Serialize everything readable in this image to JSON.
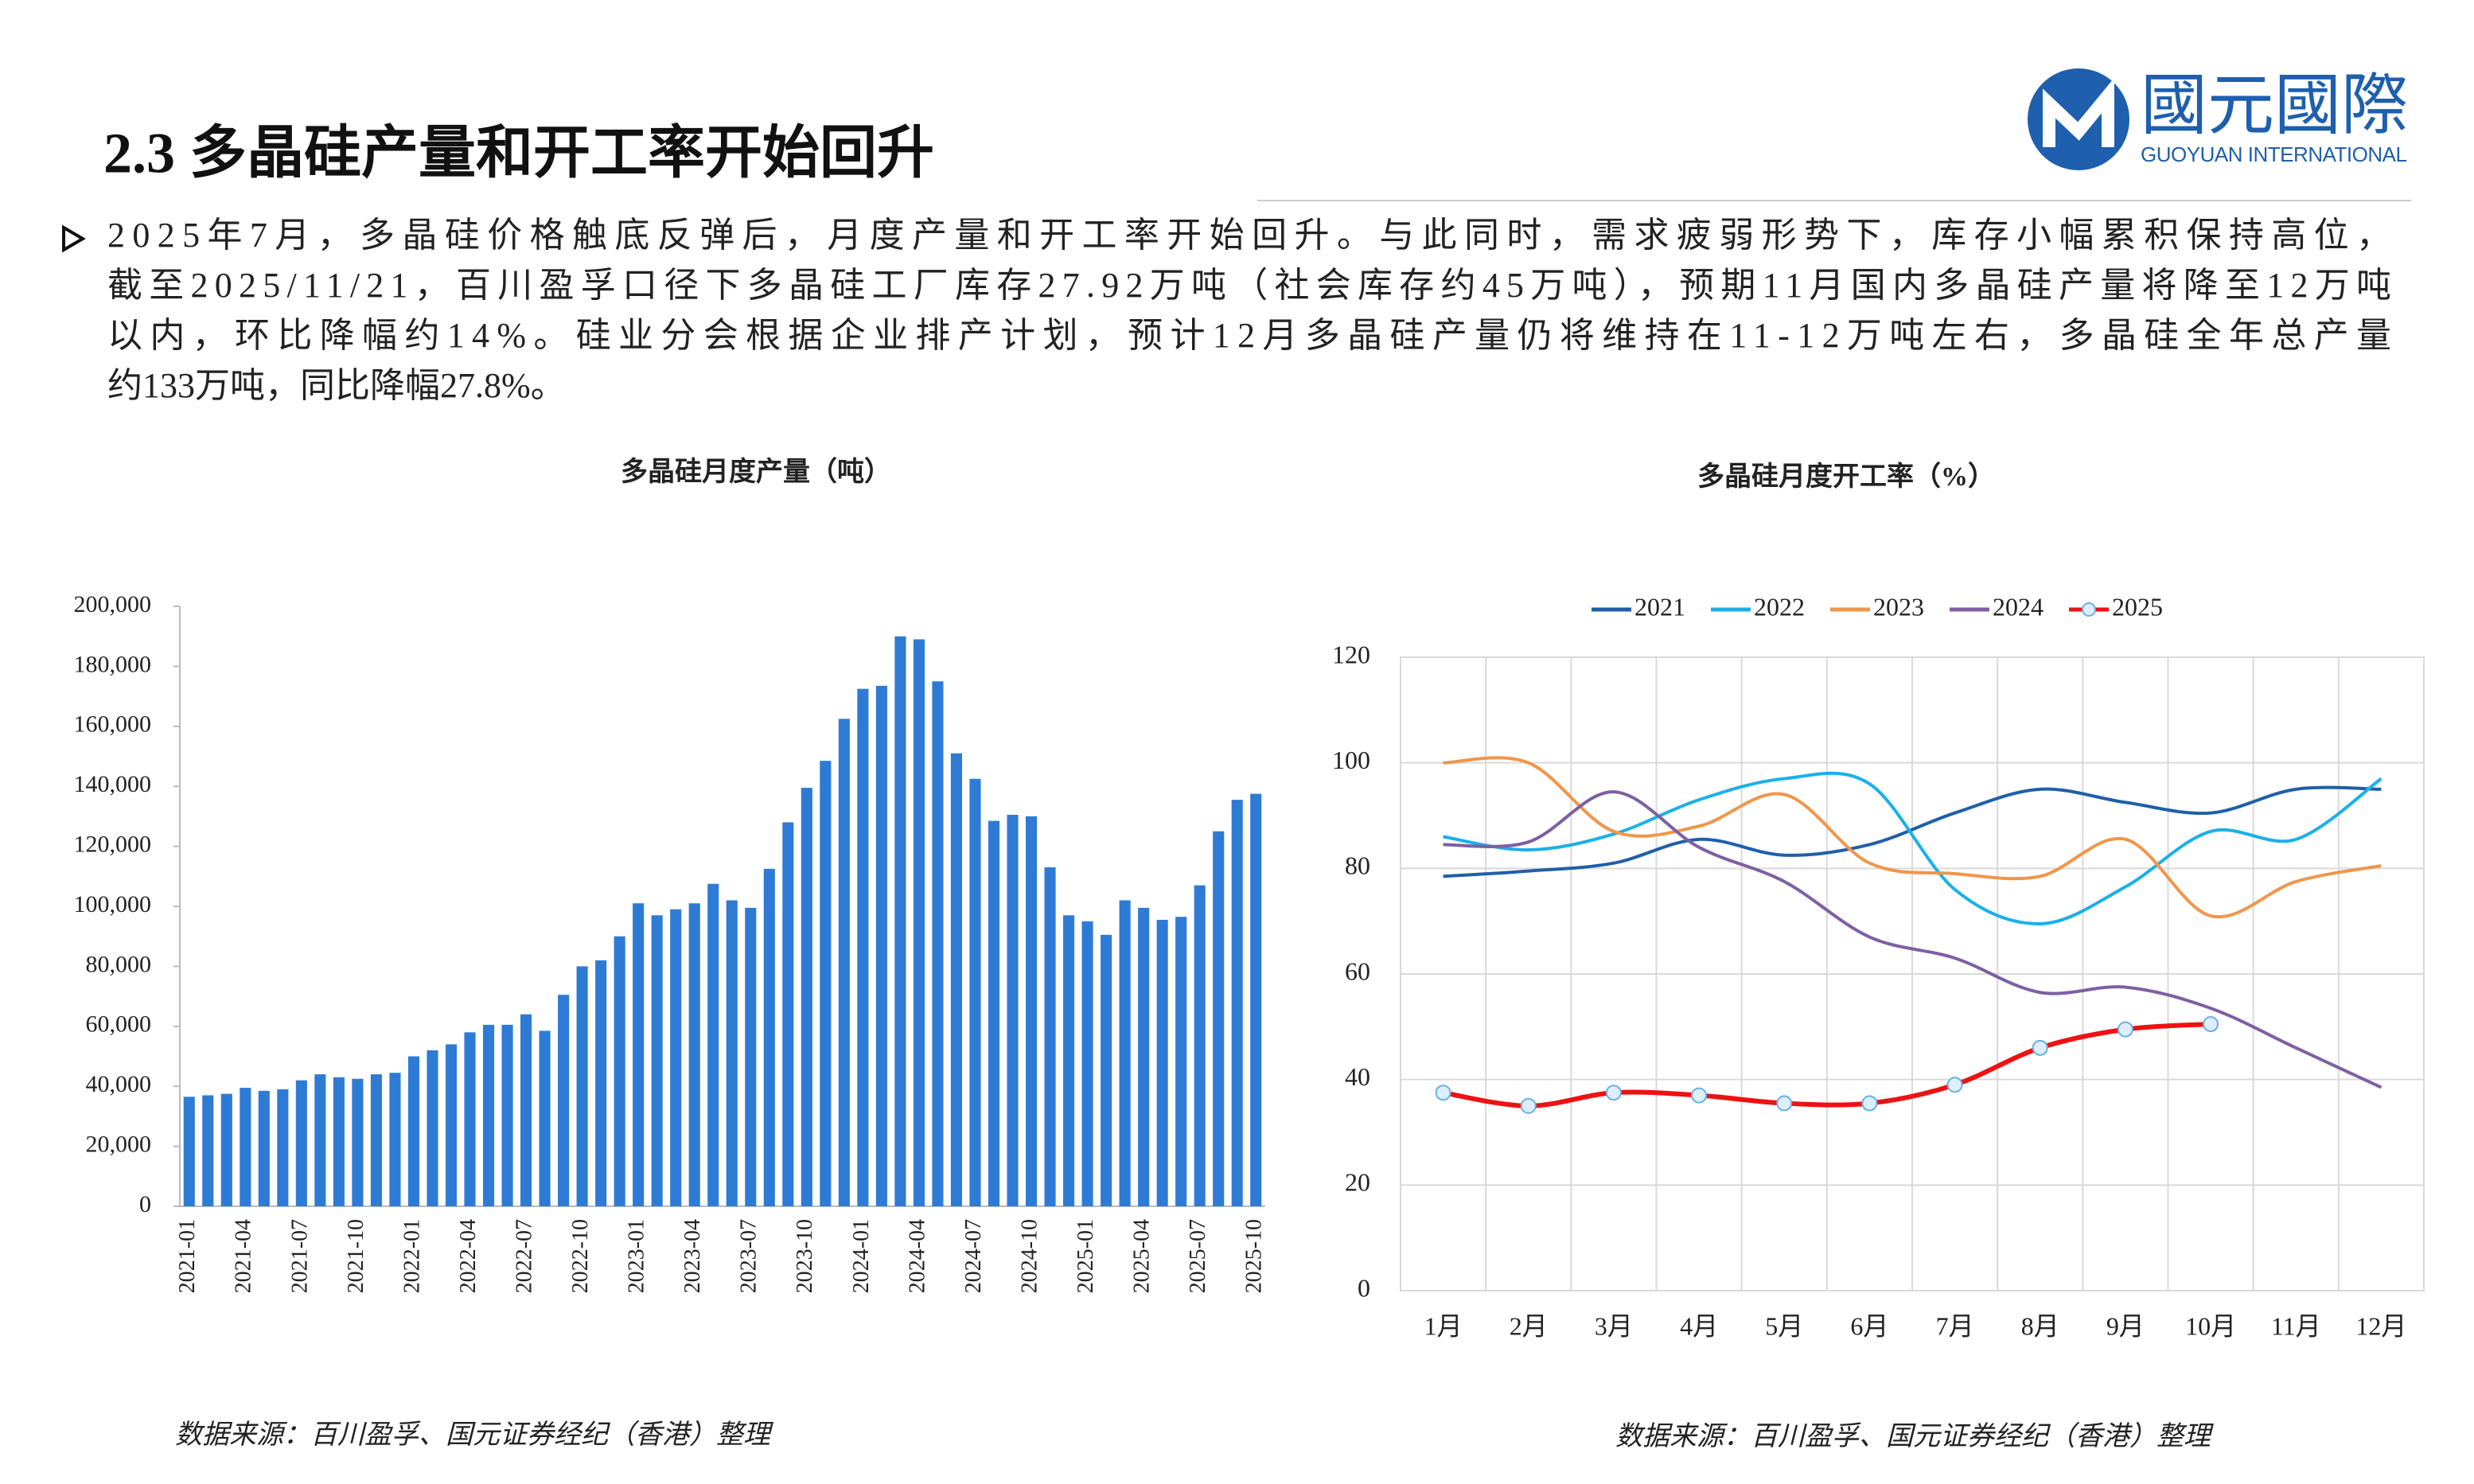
{
  "title": "2.3 多晶硅产量和开工率开始回升",
  "logo": {
    "name": "國元國際",
    "subname": "GUOYUAN INTERNATIONAL"
  },
  "body": [
    "2025年7月，多晶硅价格触底反弹后，月度产量和开工率开始回升。与此同时，需求疲弱形势下，库存小幅累积保持高位，",
    "截至2025/11/21，百川盈孚口径下多晶硅工厂库存27.92万吨（社会库存约45万吨），预期11月国内多晶硅产量将降至12万吨",
    "以内，环比降幅约14%。硅业分会根据企业排产计划，预计12月多晶硅产量仍将维持在11-12万吨左右，多晶硅全年总产量",
    "约133万吨，同比降幅27.8%。"
  ],
  "chart_data": [
    {
      "type": "bar",
      "title": "多晶硅月度产量（吨）",
      "note": "数据来源：百川盈孚、国元证券经纪（香港）整理",
      "color": "#2e7bd6",
      "categories": [
        "2021-01",
        null,
        null,
        "2021-04",
        null,
        null,
        "2021-07",
        null,
        null,
        "2021-10",
        null,
        null,
        "2022-01",
        null,
        null,
        "2022-04",
        null,
        null,
        "2022-07",
        null,
        null,
        "2022-10",
        null,
        null,
        "2023-01",
        null,
        null,
        "2023-04",
        null,
        null,
        "2023-07",
        null,
        null,
        "2023-10",
        null,
        null,
        "2024-01",
        null,
        null,
        "2024-04",
        null,
        null,
        "2024-07",
        null,
        null,
        "2024-10",
        null,
        null,
        "2025-01",
        null,
        null,
        "2025-04",
        null,
        null,
        "2025-07",
        null,
        null,
        "2025-10"
      ],
      "values": [
        36500,
        37000,
        37500,
        39500,
        38500,
        39000,
        42000,
        44000,
        43000,
        42500,
        44000,
        44500,
        50000,
        52000,
        54000,
        58000,
        60500,
        60500,
        64000,
        58500,
        70500,
        80000,
        82000,
        90000,
        101000,
        97000,
        99000,
        101000,
        107500,
        102000,
        99500,
        112500,
        128000,
        139500,
        148500,
        162500,
        172500,
        173500,
        190000,
        189000,
        175000,
        151000,
        142500,
        128500,
        130500,
        130000,
        113000,
        97000,
        95000,
        90500,
        102000,
        99500,
        95500,
        96500,
        107000,
        125000,
        135500,
        137500
      ],
      "ylim": [
        0,
        200000
      ],
      "yticks": [
        0,
        {
          "value": 20000,
          "label": "20,000"
        },
        {
          "value": 40000,
          "label": "40,000"
        },
        {
          "value": 60000,
          "label": "60,000"
        },
        {
          "value": 80000,
          "label": "80,000"
        },
        {
          "value": 100000,
          "label": "100,000"
        },
        {
          "value": 120000,
          "label": "120,000"
        },
        {
          "value": 140000,
          "label": "140,000"
        },
        {
          "value": 160000,
          "label": "160,000"
        },
        {
          "value": 180000,
          "label": "180,000"
        },
        {
          "value": 200000,
          "label": "200,000"
        }
      ],
      "grid": false
    },
    {
      "type": "line",
      "title": "多晶硅月度开工率（%）",
      "note": "数据来源：百川盈孚、国元证券经纪（香港）整理",
      "categories": [
        "1月",
        "2月",
        "3月",
        "4月",
        "5月",
        "6月",
        "7月",
        "8月",
        "9月",
        "10月",
        "11月",
        "12月"
      ],
      "series": [
        {
          "name": "2021",
          "color": "#1f5fa8",
          "values": [
            78.5,
            79.5,
            81,
            85.5,
            82.5,
            84.5,
            90.5,
            95,
            92.5,
            90.5,
            95,
            95
          ]
        },
        {
          "name": "2022",
          "color": "#1ab0ea",
          "values": [
            86,
            83.5,
            86.5,
            93,
            97,
            96,
            76,
            69.5,
            76.5,
            87,
            85.5,
            97
          ]
        },
        {
          "name": "2023",
          "color": "#f0964a",
          "values": [
            100,
            100,
            87,
            88,
            94,
            81,
            79,
            78.5,
            85.5,
            71,
            77.5,
            80.5
          ]
        },
        {
          "name": "2024",
          "color": "#7d5fa2",
          "values": [
            84.5,
            85,
            94.5,
            84,
            77.5,
            67,
            63,
            56.5,
            57.5,
            53.5,
            46,
            38.5
          ]
        },
        {
          "name": "2025",
          "color": "#ee1111",
          "marker": true,
          "values": [
            37.5,
            35,
            37.5,
            37,
            35.5,
            35.5,
            39,
            46,
            49.5,
            50.5,
            null,
            null
          ]
        }
      ],
      "ylim": [
        0,
        120
      ],
      "yticks": [
        0,
        20,
        40,
        60,
        80,
        100,
        120
      ],
      "grid": true,
      "legend": "top"
    }
  ]
}
